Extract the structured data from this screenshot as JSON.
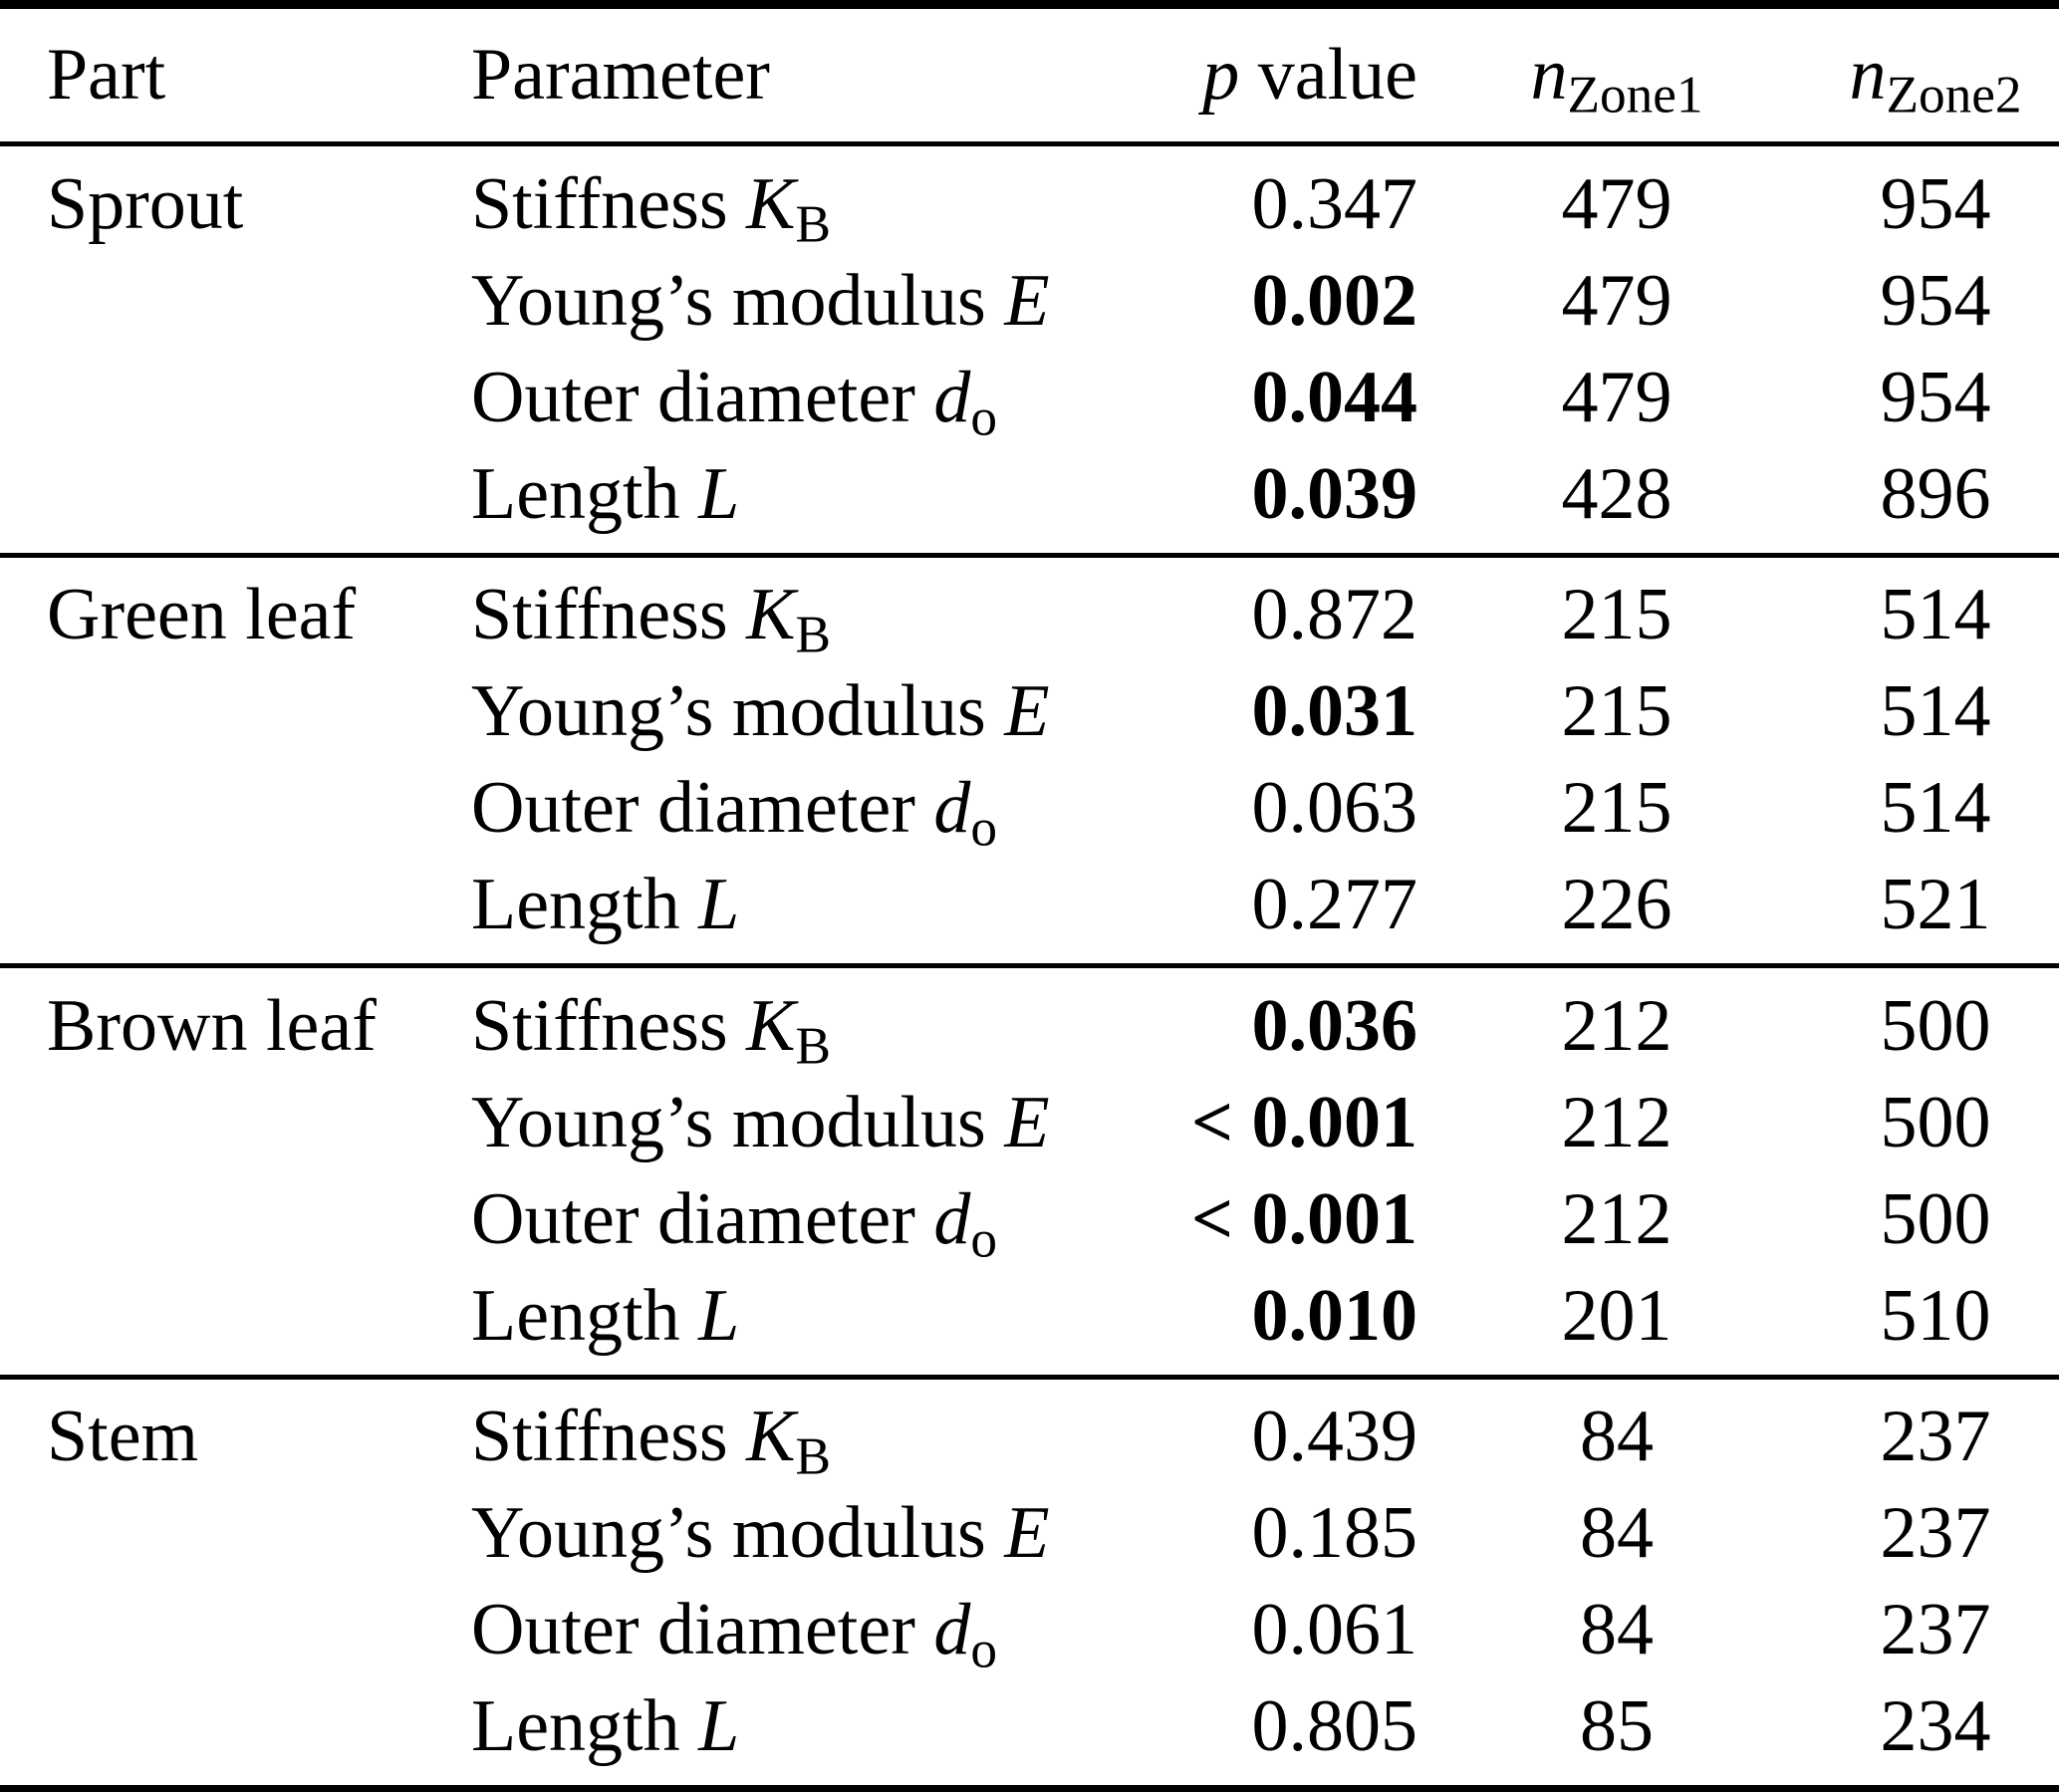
{
  "colors": {
    "text": "#000000",
    "background": "#ffffff",
    "rule": "#000000"
  },
  "table": {
    "header": {
      "part": "Part",
      "parameter": "Parameter",
      "p_var": "p",
      "p_rest": " value",
      "n_var": "n",
      "n1_sub": "Zone1",
      "n2_sub": "Zone2"
    },
    "groups": [
      {
        "part": "Sprout",
        "rows": [
          {
            "param_pre": "Stiffness ",
            "param_var": "K",
            "param_sub": "B",
            "p": "0.347",
            "p_bold": false,
            "n1": "479",
            "n2": "954"
          },
          {
            "param_pre": "Young’s modulus ",
            "param_var": "E",
            "param_sub": "",
            "p": "0.002",
            "p_bold": true,
            "n1": "479",
            "n2": "954"
          },
          {
            "param_pre": "Outer diameter ",
            "param_var": "d",
            "param_sub": "o",
            "p": "0.044",
            "p_bold": true,
            "n1": "479",
            "n2": "954"
          },
          {
            "param_pre": "Length ",
            "param_var": "L",
            "param_sub": "",
            "p": "0.039",
            "p_bold": true,
            "n1": "428",
            "n2": "896"
          }
        ]
      },
      {
        "part": "Green leaf",
        "rows": [
          {
            "param_pre": "Stiffness ",
            "param_var": "K",
            "param_sub": "B",
            "p": "0.872",
            "p_bold": false,
            "n1": "215",
            "n2": "514"
          },
          {
            "param_pre": "Young’s modulus ",
            "param_var": "E",
            "param_sub": "",
            "p": "0.031",
            "p_bold": true,
            "n1": "215",
            "n2": "514"
          },
          {
            "param_pre": "Outer diameter ",
            "param_var": "d",
            "param_sub": "o",
            "p": "0.063",
            "p_bold": false,
            "n1": "215",
            "n2": "514"
          },
          {
            "param_pre": "Length ",
            "param_var": "L",
            "param_sub": "",
            "p": "0.277",
            "p_bold": false,
            "n1": "226",
            "n2": "521"
          }
        ]
      },
      {
        "part": "Brown leaf",
        "rows": [
          {
            "param_pre": "Stiffness ",
            "param_var": "K",
            "param_sub": "B",
            "p": "0.036",
            "p_bold": true,
            "n1": "212",
            "n2": "500"
          },
          {
            "param_pre": "Young’s modulus ",
            "param_var": "E",
            "param_sub": "",
            "p": "< 0.001",
            "p_bold": true,
            "n1": "212",
            "n2": "500"
          },
          {
            "param_pre": "Outer diameter ",
            "param_var": "d",
            "param_sub": "o",
            "p": "< 0.001",
            "p_bold": true,
            "n1": "212",
            "n2": "500"
          },
          {
            "param_pre": "Length ",
            "param_var": "L",
            "param_sub": "",
            "p": "0.010",
            "p_bold": true,
            "n1": "201",
            "n2": "510"
          }
        ]
      },
      {
        "part": "Stem",
        "rows": [
          {
            "param_pre": "Stiffness ",
            "param_var": "K",
            "param_sub": "B",
            "p": "0.439",
            "p_bold": false,
            "n1": "84",
            "n2": "237"
          },
          {
            "param_pre": "Young’s modulus ",
            "param_var": "E",
            "param_sub": "",
            "p": "0.185",
            "p_bold": false,
            "n1": "84",
            "n2": "237"
          },
          {
            "param_pre": "Outer diameter ",
            "param_var": "d",
            "param_sub": "o",
            "p": "0.061",
            "p_bold": false,
            "n1": "84",
            "n2": "237"
          },
          {
            "param_pre": "Length ",
            "param_var": "L",
            "param_sub": "",
            "p": "0.805",
            "p_bold": false,
            "n1": "85",
            "n2": "234"
          }
        ]
      }
    ]
  }
}
